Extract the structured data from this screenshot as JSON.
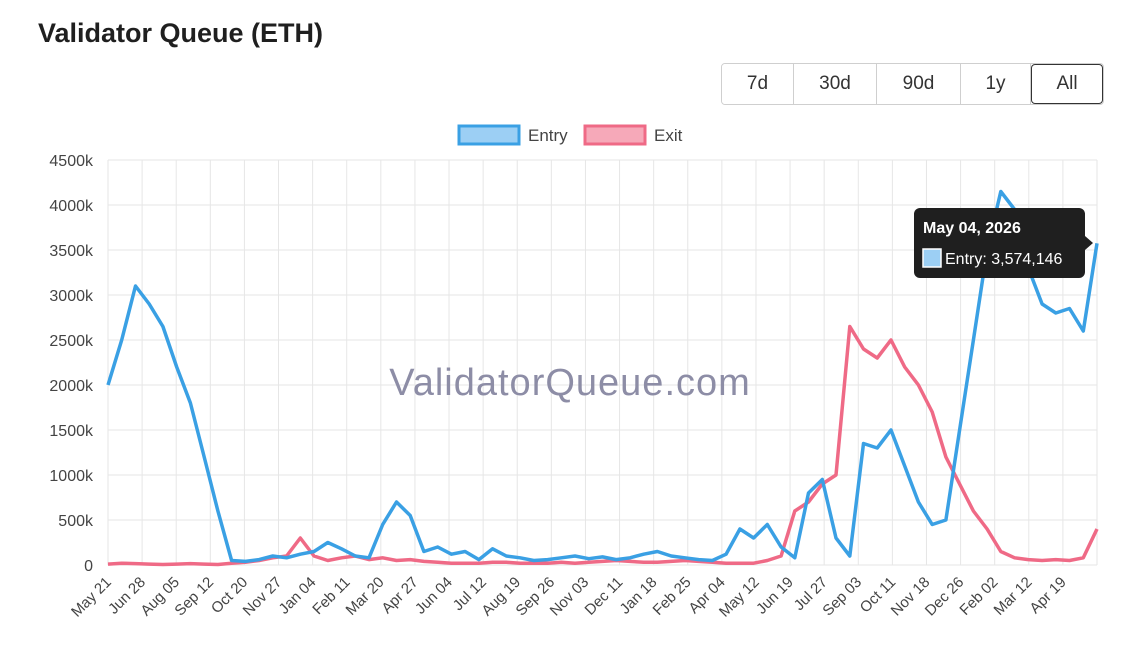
{
  "title": "Validator Queue (ETH)",
  "range_buttons": [
    {
      "label": "7d",
      "active": false
    },
    {
      "label": "30d",
      "active": false
    },
    {
      "label": "90d",
      "active": false
    },
    {
      "label": "1y",
      "active": false
    },
    {
      "label": "All",
      "active": true
    }
  ],
  "watermark": "ValidatorQueue.com",
  "tooltip": {
    "title": "May 04, 2026",
    "body": "Entry: 3,574,146",
    "series": "Entry"
  },
  "colors": {
    "entry_line": "#3aa0e4",
    "entry_fill": "#9ccff4",
    "exit_line": "#ef6a86",
    "exit_fill": "#f6a9b9",
    "grid": "#e6e6e6",
    "tooltip_bg": "#1f1f1f"
  },
  "chart_data": {
    "type": "line",
    "title": "",
    "xlabel": "",
    "ylabel": "",
    "ylim": [
      0,
      4500
    ],
    "y_ticks": [
      "0",
      "500k",
      "1000k",
      "1500k",
      "2000k",
      "2500k",
      "3000k",
      "3500k",
      "4000k",
      "4500k"
    ],
    "x_ticks": [
      "May 21",
      "Jun 28",
      "Aug 05",
      "Sep 12",
      "Oct 20",
      "Nov 27",
      "Jan 04",
      "Feb 11",
      "Mar 20",
      "Apr 27",
      "Jun 04",
      "Jul 12",
      "Aug 19",
      "Sep 26",
      "Nov 03",
      "Dec 11",
      "Jan 18",
      "Feb 25",
      "Apr 04",
      "May 12",
      "Jun 19",
      "Jul 27",
      "Sep 03",
      "Oct 11",
      "Nov 18",
      "Dec 26",
      "Feb 02",
      "Mar 12",
      "Apr 19"
    ],
    "grid": true,
    "legend_position": "top-center",
    "series": [
      {
        "name": "Entry",
        "values": [
          2000,
          2500,
          3100,
          2900,
          2650,
          2200,
          1800,
          1200,
          600,
          50,
          40,
          60,
          100,
          80,
          120,
          150,
          250,
          180,
          100,
          80,
          450,
          700,
          550,
          150,
          200,
          120,
          150,
          60,
          180,
          100,
          80,
          50,
          60,
          80,
          100,
          70,
          90,
          60,
          80,
          120,
          150,
          100,
          80,
          60,
          50,
          120,
          400,
          300,
          450,
          200,
          80,
          800,
          950,
          300,
          100,
          1350,
          1300,
          1500,
          1100,
          700,
          450,
          500,
          1500,
          2500,
          3500,
          4150,
          3950,
          3300,
          2900,
          2800,
          2850,
          2600,
          3574
        ]
      },
      {
        "name": "Exit",
        "values": [
          10,
          20,
          15,
          10,
          5,
          10,
          15,
          10,
          5,
          20,
          30,
          50,
          80,
          100,
          300,
          100,
          50,
          80,
          100,
          60,
          80,
          50,
          60,
          40,
          30,
          20,
          20,
          20,
          30,
          30,
          20,
          20,
          20,
          30,
          20,
          30,
          40,
          50,
          40,
          30,
          30,
          40,
          50,
          40,
          30,
          20,
          20,
          20,
          50,
          100,
          600,
          700,
          900,
          1000,
          2650,
          2400,
          2300,
          2500,
          2200,
          2000,
          1700,
          1200,
          900,
          600,
          400,
          150,
          80,
          60,
          50,
          60,
          50,
          80,
          400
        ]
      }
    ]
  }
}
